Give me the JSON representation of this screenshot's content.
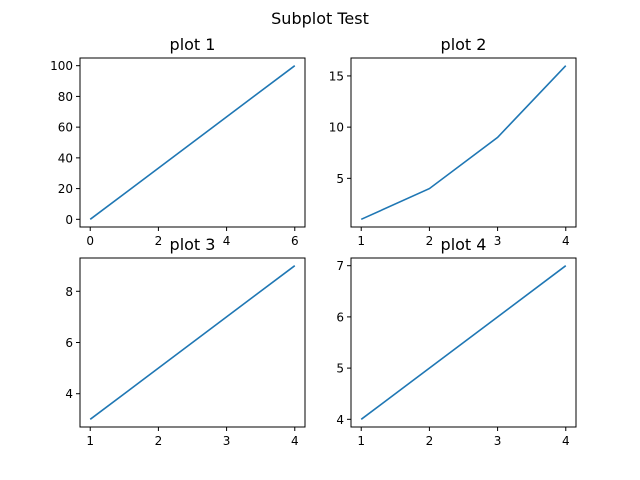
{
  "figure": {
    "title": "Subplot Test",
    "line_color": "#1f77b4"
  },
  "chart_data": [
    {
      "type": "line",
      "title": "plot 1",
      "xlabel": "",
      "ylabel": "",
      "x": [
        0,
        6
      ],
      "y": [
        0,
        100
      ],
      "xlim": [
        -0.3,
        6.3
      ],
      "ylim": [
        -5,
        105
      ],
      "xticks": [
        0,
        2,
        4,
        6
      ],
      "yticks": [
        0,
        20,
        40,
        60,
        80,
        100
      ],
      "grid": false
    },
    {
      "type": "line",
      "title": "plot 2",
      "xlabel": "",
      "ylabel": "",
      "x": [
        1,
        2,
        3,
        4
      ],
      "y": [
        1,
        4,
        9,
        16
      ],
      "xlim": [
        0.85,
        4.15
      ],
      "ylim": [
        0.25,
        16.75
      ],
      "xticks": [
        1,
        2,
        3,
        4
      ],
      "yticks": [
        5,
        10,
        15
      ],
      "grid": false
    },
    {
      "type": "line",
      "title": "plot 3",
      "xlabel": "",
      "ylabel": "",
      "x": [
        1,
        4
      ],
      "y": [
        3,
        9
      ],
      "xlim": [
        0.85,
        4.15
      ],
      "ylim": [
        2.7,
        9.3
      ],
      "xticks": [
        1,
        2,
        3,
        4
      ],
      "yticks": [
        4,
        6,
        8
      ],
      "grid": false
    },
    {
      "type": "line",
      "title": "plot 4",
      "xlabel": "",
      "ylabel": "",
      "x": [
        1,
        4
      ],
      "y": [
        4,
        7
      ],
      "xlim": [
        0.85,
        4.15
      ],
      "ylim": [
        3.85,
        7.15
      ],
      "xticks": [
        1,
        2,
        3,
        4
      ],
      "yticks": [
        4,
        5,
        6,
        7
      ],
      "grid": false
    }
  ]
}
